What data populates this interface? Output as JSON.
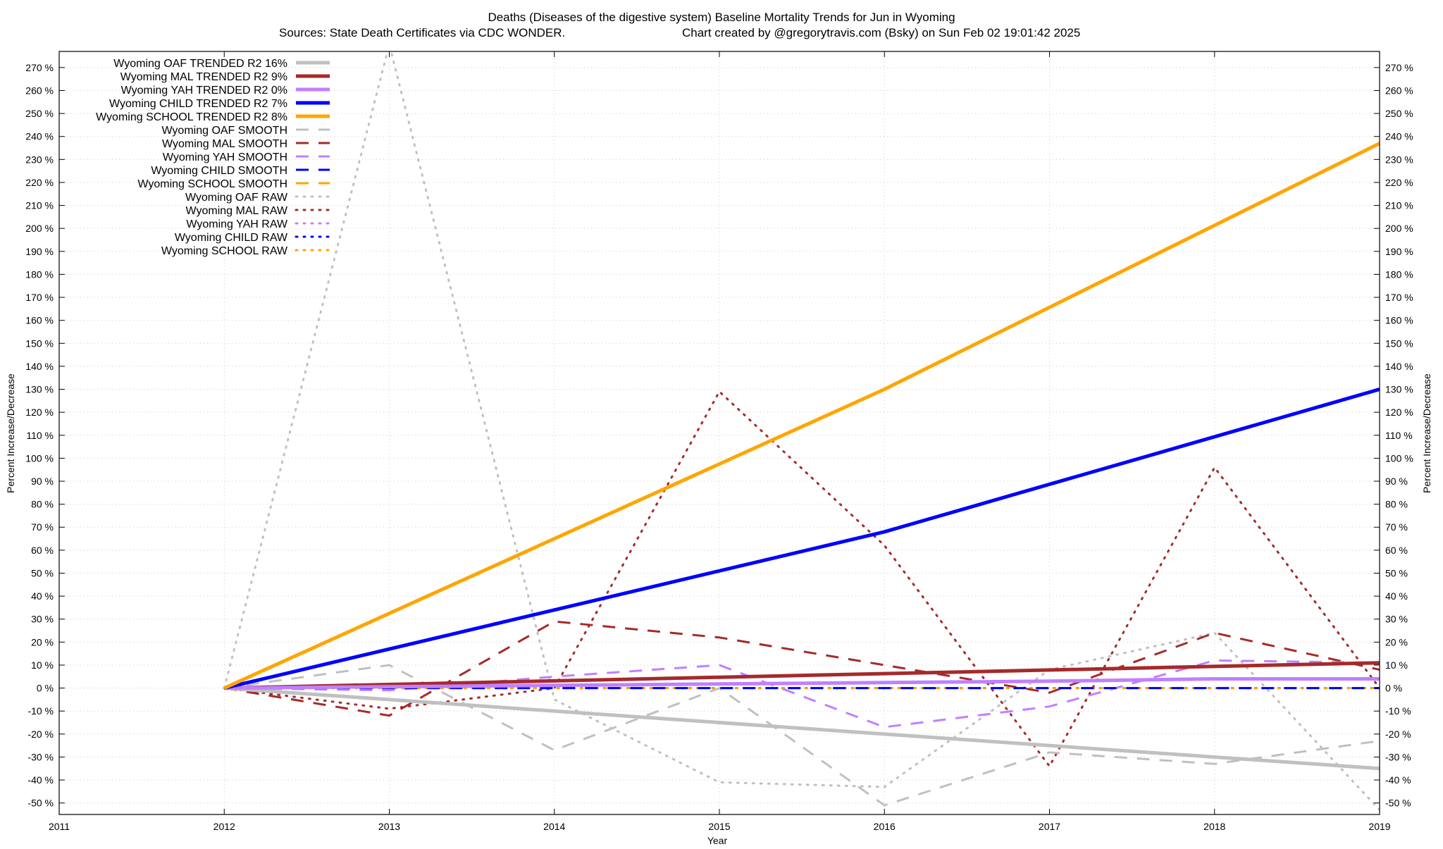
{
  "chart_data": {
    "type": "line",
    "title_line1": "Deaths (Diseases of the digestive system)  Baseline Mortality Trends for Jun in Wyoming",
    "title_line2_left": "Sources: State Death Certificates via CDC WONDER.",
    "title_line2_right": "Chart created by @gregorytravis.com (Bsky) on Sun Feb 02 19:01:42 2025",
    "xlabel": "Year",
    "ylabel": "Percent Increase/Decrease",
    "y2label": "Percent Increase/Decrease",
    "xlim": [
      2011,
      2019
    ],
    "ylim": [
      -55,
      277
    ],
    "x_ticks": [
      2011,
      2012,
      2013,
      2014,
      2015,
      2016,
      2017,
      2018,
      2019
    ],
    "y_ticks": [
      -50,
      -40,
      -30,
      -20,
      -10,
      0,
      10,
      20,
      30,
      40,
      50,
      60,
      70,
      80,
      90,
      100,
      110,
      120,
      130,
      140,
      150,
      160,
      170,
      180,
      190,
      200,
      210,
      220,
      230,
      240,
      250,
      260,
      270
    ],
    "y_tick_suffix": " %",
    "grid": true,
    "legend_position": "top-left",
    "series": [
      {
        "name": "Wyoming OAF TRENDED R2  16%",
        "style": "solid",
        "color": "#c0c0c0",
        "width": 5,
        "x": [
          2012,
          2019
        ],
        "y": [
          0,
          -35
        ]
      },
      {
        "name": "Wyoming MAL TRENDED R2   9%",
        "style": "solid",
        "color": "#a52a2a",
        "width": 5,
        "x": [
          2012,
          2019
        ],
        "y": [
          0,
          11
        ]
      },
      {
        "name": "Wyoming YAH TRENDED R2   0%",
        "style": "solid",
        "color": "#c080ff",
        "width": 5,
        "x": [
          2012,
          2017,
          2018,
          2019
        ],
        "y": [
          0,
          3,
          4,
          4
        ]
      },
      {
        "name": "Wyoming CHILD TRENDED R2   7%",
        "style": "solid",
        "color": "#0000ff",
        "width": 5,
        "x": [
          2012,
          2016,
          2019
        ],
        "y": [
          0,
          68,
          130
        ]
      },
      {
        "name": "Wyoming SCHOOL TRENDED R2   8%",
        "style": "solid",
        "color": "#ffa500",
        "width": 5,
        "x": [
          2012,
          2016,
          2019
        ],
        "y": [
          0,
          130,
          237
        ]
      },
      {
        "name": "Wyoming OAF SMOOTH",
        "style": "dashed",
        "color": "#c0c0c0",
        "width": 3,
        "x": [
          2012,
          2013,
          2014,
          2015,
          2016,
          2017,
          2018,
          2019
        ],
        "y": [
          0,
          10,
          -27,
          0,
          -51,
          -28,
          -33,
          -23
        ]
      },
      {
        "name": "Wyoming MAL SMOOTH",
        "style": "dashed",
        "color": "#a52a2a",
        "width": 3,
        "x": [
          2012,
          2013,
          2014,
          2015,
          2016,
          2017,
          2018,
          2019
        ],
        "y": [
          0,
          -12,
          29,
          22,
          10,
          -2,
          24,
          8
        ]
      },
      {
        "name": "Wyoming YAH SMOOTH",
        "style": "dashed",
        "color": "#c080ff",
        "width": 3,
        "x": [
          2012,
          2013,
          2014,
          2015,
          2016,
          2017,
          2018,
          2019
        ],
        "y": [
          0,
          -1,
          5,
          10,
          -17,
          -8,
          12,
          11
        ]
      },
      {
        "name": "Wyoming CHILD SMOOTH",
        "style": "dashed",
        "color": "#0000ff",
        "width": 3,
        "x": [
          2012,
          2019
        ],
        "y": [
          0,
          0
        ]
      },
      {
        "name": "Wyoming SCHOOL SMOOTH",
        "style": "dashed",
        "color": "#ffa500",
        "width": 3,
        "x": [
          2012,
          2019
        ],
        "y": [
          0,
          0
        ]
      },
      {
        "name": "Wyoming OAF RAW",
        "style": "dotted",
        "color": "#c0c0c0",
        "width": 3,
        "x": [
          2012,
          2013,
          2014,
          2015,
          2016,
          2017,
          2018,
          2019
        ],
        "y": [
          0,
          280,
          -5,
          -41,
          -43,
          8,
          24,
          -53
        ]
      },
      {
        "name": "Wyoming MAL RAW",
        "style": "dotted",
        "color": "#a52a2a",
        "width": 3,
        "x": [
          2012,
          2013,
          2014,
          2015,
          2016,
          2017,
          2018,
          2019
        ],
        "y": [
          0,
          -9,
          0,
          129,
          62,
          -34,
          96,
          0
        ]
      },
      {
        "name": "Wyoming YAH RAW",
        "style": "dotted",
        "color": "#c080ff",
        "width": 3,
        "x": [
          2012,
          2019
        ],
        "y": [
          0,
          0
        ]
      },
      {
        "name": "Wyoming CHILD RAW",
        "style": "dotted",
        "color": "#0000ff",
        "width": 3,
        "x": [
          2012,
          2019
        ],
        "y": [
          0,
          0
        ]
      },
      {
        "name": "Wyoming SCHOOL RAW",
        "style": "dotted",
        "color": "#ffa500",
        "width": 3,
        "x": [
          2012,
          2019
        ],
        "y": [
          0,
          0
        ]
      }
    ]
  }
}
